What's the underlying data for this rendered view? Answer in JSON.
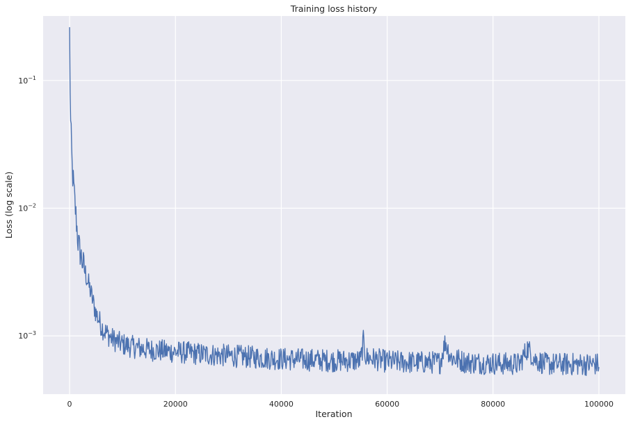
{
  "chart_data": {
    "type": "line",
    "title": "Training loss history",
    "xlabel": "Iteration",
    "ylabel": "Loss (log scale)",
    "yscale": "log",
    "xlim": [
      -5000,
      105000
    ],
    "ylim": [
      0.00035,
      0.32
    ],
    "grid": true,
    "background_color": "#eaeaf2",
    "line_color": "#4c72b0",
    "x_ticks": [
      {
        "value": 0,
        "label": "0"
      },
      {
        "value": 20000,
        "label": "20000"
      },
      {
        "value": 40000,
        "label": "40000"
      },
      {
        "value": 60000,
        "label": "60000"
      },
      {
        "value": 80000,
        "label": "80000"
      },
      {
        "value": 100000,
        "label": "100000"
      }
    ],
    "y_ticks": [
      {
        "value": 0.1,
        "base": "10",
        "exp": "−1"
      },
      {
        "value": 0.01,
        "base": "10",
        "exp": "−2"
      },
      {
        "value": 0.001,
        "base": "10",
        "exp": "−3"
      }
    ],
    "series": [
      {
        "x": [
          0,
          100,
          200,
          300,
          500,
          700,
          1000,
          1300,
          1600,
          2000,
          2500,
          3000,
          3500,
          4000,
          4500,
          5000,
          5500,
          6000,
          6500,
          7000,
          8000,
          9000,
          10000,
          12000,
          15000,
          18000,
          20000,
          25000,
          30000,
          35000,
          40000,
          45000,
          50000,
          55000,
          55500,
          56000,
          60000,
          65000,
          70000,
          71000,
          72000,
          75000,
          80000,
          85000,
          86500,
          88000,
          90000,
          95000,
          100000
        ],
        "y": [
          0.24,
          0.09,
          0.045,
          0.035,
          0.02,
          0.016,
          0.011,
          0.0078,
          0.0055,
          0.0045,
          0.0037,
          0.0031,
          0.0026,
          0.0022,
          0.0018,
          0.0015,
          0.00135,
          0.0012,
          0.0011,
          0.00105,
          0.00095,
          0.0009,
          0.00086,
          0.00082,
          0.00078,
          0.00076,
          0.00075,
          0.00072,
          0.0007,
          0.00068,
          0.00066,
          0.00065,
          0.00064,
          0.00064,
          0.0009,
          0.00068,
          0.00063,
          0.00062,
          0.00062,
          0.0009,
          0.00068,
          0.00062,
          0.00061,
          0.0006,
          0.0008,
          0.00065,
          0.0006,
          0.0006,
          0.0006
        ]
      }
    ]
  }
}
